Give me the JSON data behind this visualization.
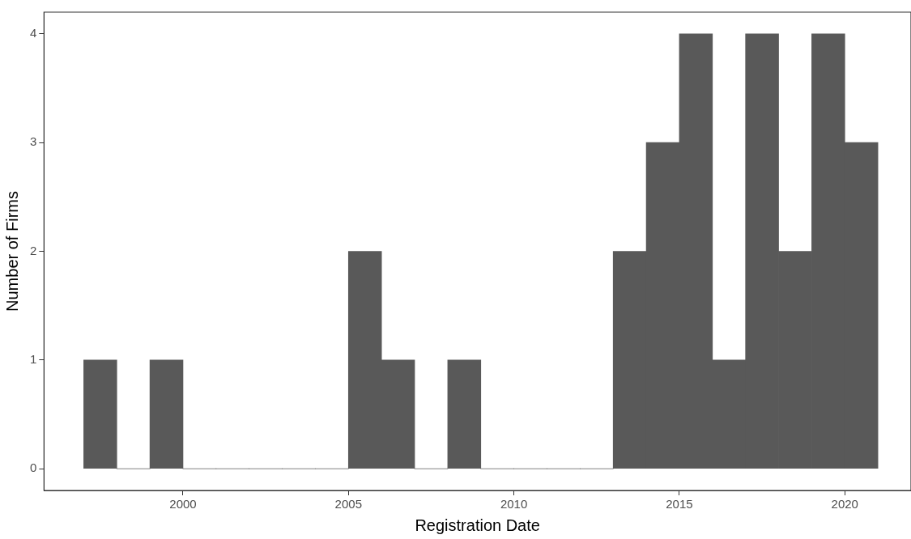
{
  "chart_data": {
    "type": "histogram",
    "xlabel": "Registration Date",
    "ylabel": "Number of Firms",
    "color": "#595959",
    "bins": [
      1997,
      1998,
      1999,
      2000,
      2001,
      2002,
      2003,
      2004,
      2005,
      2006,
      2007,
      2008,
      2009,
      2010,
      2011,
      2012,
      2013,
      2014,
      2015,
      2016,
      2017,
      2018,
      2019,
      2020,
      2021
    ],
    "values": [
      1,
      0,
      1,
      0,
      0,
      0,
      0,
      0,
      2,
      1,
      0,
      1,
      0,
      0,
      0,
      0,
      2,
      3,
      4,
      1,
      4,
      2,
      4,
      3
    ],
    "xlim": [
      1995.8,
      2022
    ],
    "xticks": [
      2000,
      2005,
      2010,
      2015,
      2020
    ],
    "ylim": [
      -0.2,
      4.2
    ],
    "yticks": [
      0,
      1,
      2,
      3,
      4
    ],
    "grid": false,
    "legend": false
  }
}
